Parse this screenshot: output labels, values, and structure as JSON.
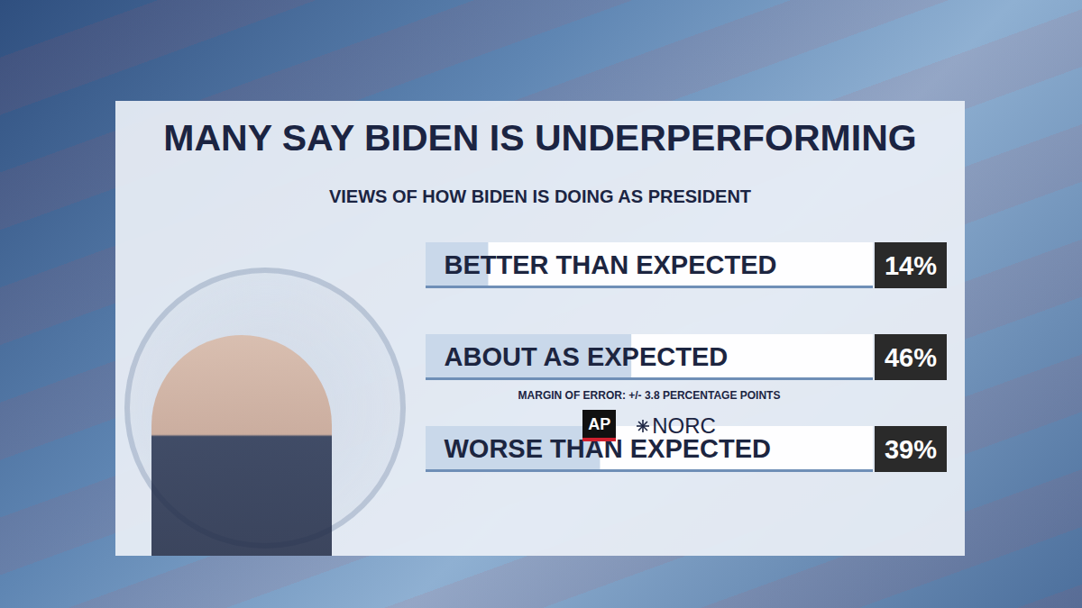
{
  "chart_data": {
    "type": "bar",
    "orientation": "horizontal",
    "title": "MANY SAY BIDEN IS UNDERPERFORMING",
    "subtitle": "VIEWS OF HOW BIDEN IS DOING AS PRESIDENT",
    "categories": [
      "BETTER THAN EXPECTED",
      "ABOUT AS EXPECTED",
      "WORSE THAN EXPECTED"
    ],
    "values": [
      14,
      46,
      39
    ],
    "value_labels": [
      "14%",
      "46%",
      "39%"
    ],
    "data_labels": true,
    "xlim": [
      0,
      100
    ],
    "tick_labels": false,
    "grid": false,
    "color": "#c9d8ea",
    "annotations": [
      "MARGIN OF ERROR: +/- 3.8 PERCENTAGE POINTS"
    ],
    "source": [
      "AP",
      "NORC"
    ]
  }
}
